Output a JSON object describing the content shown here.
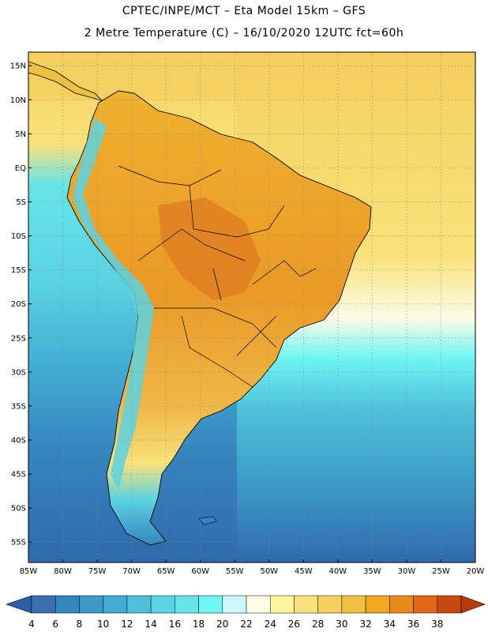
{
  "header": {
    "line1": "CPTEC/INPE/MCT –  Eta Model 15km – GFS",
    "line2": "2 Metre Temperature (C) – 16/10/2020 12UTC fct=60h"
  },
  "map": {
    "lon_range": [
      -85,
      -20
    ],
    "lat_range": [
      -58,
      17
    ],
    "lat_ticks": [
      "15N",
      "10N",
      "5N",
      "EQ",
      "5S",
      "10S",
      "15S",
      "20S",
      "25S",
      "30S",
      "35S",
      "40S",
      "45S",
      "50S",
      "55S"
    ],
    "lat_values": [
      15,
      10,
      5,
      0,
      -5,
      -10,
      -15,
      -20,
      -25,
      -30,
      -35,
      -40,
      -45,
      -50,
      -55
    ],
    "lon_ticks": [
      "85W",
      "80W",
      "75W",
      "70W",
      "65W",
      "60W",
      "55W",
      "50W",
      "45W",
      "40W",
      "35W",
      "30W",
      "25W",
      "20W"
    ],
    "lon_values": [
      -85,
      -80,
      -75,
      -70,
      -65,
      -60,
      -55,
      -50,
      -45,
      -40,
      -35,
      -30,
      -25,
      -20
    ],
    "grid": "dotted"
  },
  "colorbar": {
    "labels": [
      "4",
      "6",
      "8",
      "10",
      "12",
      "14",
      "16",
      "18",
      "20",
      "22",
      "24",
      "26",
      "28",
      "30",
      "32",
      "34",
      "36",
      "38"
    ],
    "colors": [
      "#3a70b0",
      "#3585bf",
      "#3b9ac8",
      "#41acd3",
      "#4fc0db",
      "#5ad3e3",
      "#66e4ea",
      "#6ef5f4",
      "#cef7fb",
      "#fffbe6",
      "#fff59e",
      "#f9e27a",
      "#f5d060",
      "#f0c040",
      "#f0a820",
      "#ea8a1e",
      "#e06818",
      "#c84810"
    ],
    "low_color": "#2f5ea8",
    "high_color": "#b83a0a"
  }
}
